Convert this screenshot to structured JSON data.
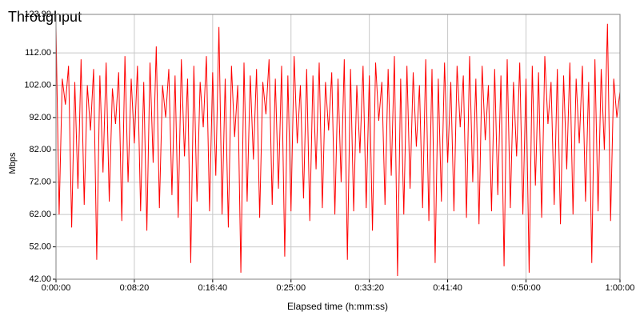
{
  "chart_data": {
    "type": "line",
    "title": "Throughput",
    "xlabel": "Elapsed time (h:mm:ss)",
    "ylabel": "Mbps",
    "grid": true,
    "xlim": [
      0,
      3600
    ],
    "xticks": [
      {
        "value": 0,
        "label": "0:00:00"
      },
      {
        "value": 500,
        "label": "0:08:20"
      },
      {
        "value": 1000,
        "label": "0:16:40"
      },
      {
        "value": 1500,
        "label": "0:25:00"
      },
      {
        "value": 2000,
        "label": "0:33:20"
      },
      {
        "value": 2500,
        "label": "0:41:40"
      },
      {
        "value": 3000,
        "label": "0:50:00"
      },
      {
        "value": 3600,
        "label": "1:00:00"
      }
    ],
    "ylim": [
      42,
      123.9
    ],
    "yticks": [
      {
        "value": 42,
        "label": "42.00"
      },
      {
        "value": 52,
        "label": "52.00"
      },
      {
        "value": 62,
        "label": "62.00"
      },
      {
        "value": 72,
        "label": "72.00"
      },
      {
        "value": 82,
        "label": "82.00"
      },
      {
        "value": 92,
        "label": "92.00"
      },
      {
        "value": 102,
        "label": "102.00"
      },
      {
        "value": 112,
        "label": "112.00"
      },
      {
        "value": 123.9,
        "label": "123.90"
      }
    ],
    "x": [
      0,
      20,
      40,
      60,
      80,
      100,
      120,
      140,
      160,
      180,
      200,
      220,
      240,
      260,
      280,
      300,
      320,
      340,
      360,
      380,
      400,
      420,
      440,
      460,
      480,
      500,
      520,
      540,
      560,
      580,
      600,
      620,
      640,
      660,
      680,
      700,
      720,
      740,
      760,
      780,
      800,
      820,
      840,
      860,
      880,
      900,
      920,
      940,
      960,
      980,
      1000,
      1020,
      1040,
      1060,
      1080,
      1100,
      1120,
      1140,
      1160,
      1180,
      1200,
      1220,
      1240,
      1260,
      1280,
      1300,
      1320,
      1340,
      1360,
      1380,
      1400,
      1420,
      1440,
      1460,
      1480,
      1500,
      1520,
      1540,
      1560,
      1580,
      1600,
      1620,
      1640,
      1660,
      1680,
      1700,
      1720,
      1740,
      1760,
      1780,
      1800,
      1820,
      1840,
      1860,
      1880,
      1900,
      1920,
      1940,
      1960,
      1980,
      2000,
      2020,
      2040,
      2060,
      2080,
      2100,
      2120,
      2140,
      2160,
      2180,
      2200,
      2220,
      2240,
      2260,
      2280,
      2300,
      2320,
      2340,
      2360,
      2380,
      2400,
      2420,
      2440,
      2460,
      2480,
      2500,
      2520,
      2540,
      2560,
      2580,
      2600,
      2620,
      2640,
      2660,
      2680,
      2700,
      2720,
      2740,
      2760,
      2780,
      2800,
      2820,
      2840,
      2860,
      2880,
      2900,
      2920,
      2940,
      2960,
      2980,
      3000,
      3020,
      3040,
      3060,
      3080,
      3100,
      3120,
      3140,
      3160,
      3180,
      3200,
      3220,
      3240,
      3260,
      3280,
      3300,
      3320,
      3340,
      3360,
      3380,
      3400,
      3420,
      3440,
      3460,
      3480,
      3500,
      3520,
      3540,
      3560,
      3580,
      3600
    ],
    "series": [
      {
        "color": "#ff0000",
        "values": [
          120,
          62,
          104,
          96,
          108,
          58,
          103,
          70,
          110,
          65,
          102,
          88,
          107,
          48,
          105,
          75,
          109,
          66,
          101,
          90,
          106,
          60,
          111,
          72,
          104,
          84,
          108,
          63,
          103,
          57,
          109,
          78,
          114,
          64,
          102,
          92,
          107,
          68,
          105,
          61,
          110,
          80,
          104,
          47,
          108,
          66,
          103,
          89,
          111,
          63,
          106,
          74,
          120,
          62,
          104,
          58,
          108,
          86,
          102,
          44,
          109,
          66,
          105,
          79,
          107,
          61,
          103,
          93,
          110,
          65,
          104,
          70,
          108,
          49,
          105,
          63,
          111,
          84,
          102,
          67,
          107,
          60,
          105,
          76,
          109,
          64,
          103,
          88,
          106,
          62,
          104,
          72,
          110,
          48,
          107,
          63,
          102,
          81,
          108,
          64,
          105,
          57,
          109,
          91,
          103,
          65,
          107,
          74,
          111,
          43,
          104,
          62,
          108,
          70,
          106,
          83,
          102,
          64,
          110,
          60,
          107,
          47,
          104,
          66,
          109,
          78,
          103,
          63,
          108,
          89,
          105,
          61,
          111,
          72,
          104,
          59,
          108,
          85,
          102,
          63,
          107,
          68,
          105,
          46,
          110,
          64,
          103,
          80,
          109,
          62,
          104,
          44,
          108,
          71,
          106,
          61,
          111,
          90,
          103,
          65,
          107,
          59,
          105,
          76,
          109,
          62,
          104,
          84,
          108,
          66,
          103,
          47,
          110,
          63,
          107,
          82,
          121,
          60,
          104,
          92,
          100
        ]
      }
    ]
  }
}
